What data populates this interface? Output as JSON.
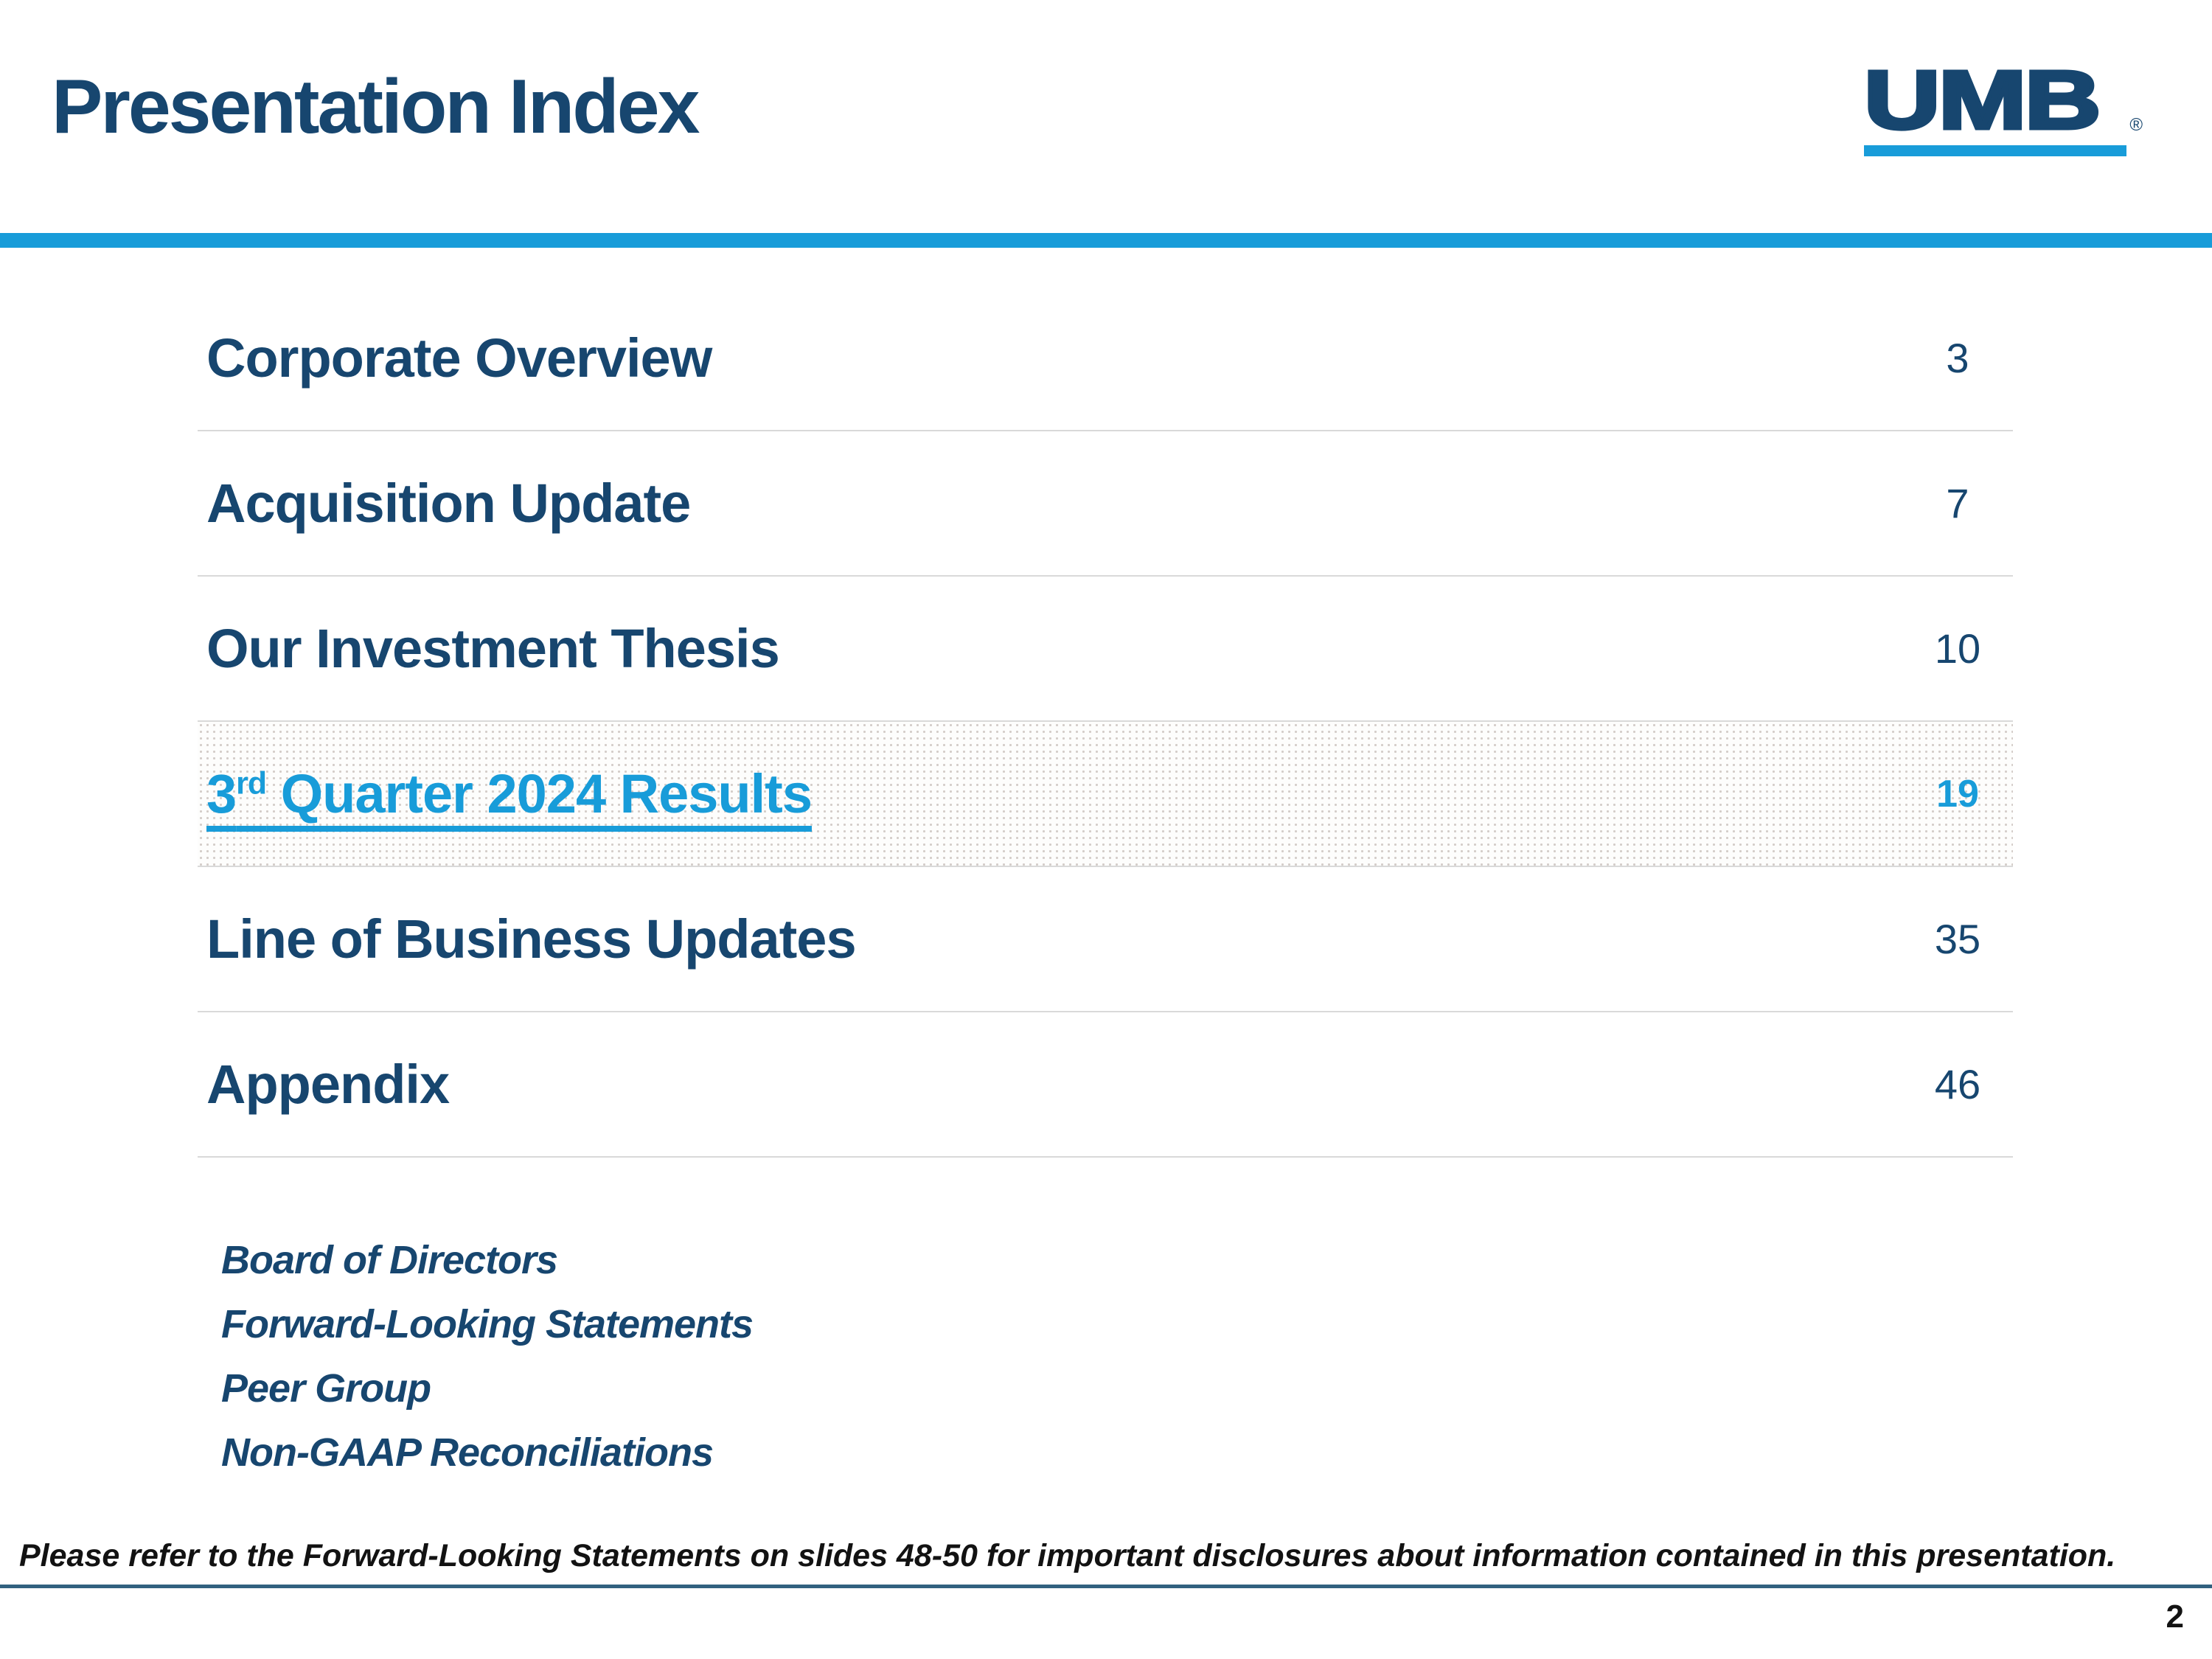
{
  "slide": {
    "title": "Presentation Index",
    "page_number": "2",
    "footer_note": "Please refer to the Forward-Looking Statements on slides 48-50 for important disclosures about information contained in this presentation."
  },
  "logo": {
    "text": "UMB",
    "registered_mark": "®"
  },
  "toc": {
    "items": [
      {
        "label": "Corporate Overview",
        "page": "3",
        "highlighted": false
      },
      {
        "label": "Acquisition Update",
        "page": "7",
        "highlighted": false
      },
      {
        "label": "Our Investment Thesis",
        "page": "10",
        "highlighted": false
      },
      {
        "label": "3rd Quarter 2024 Results",
        "page": "19",
        "highlighted": true,
        "label_parts": [
          {
            "t": "3"
          },
          {
            "t": "rd",
            "sup": true
          },
          {
            "t": " Quarter 2024 Results"
          }
        ]
      },
      {
        "label": "Line of Business Updates",
        "page": "35",
        "highlighted": false
      },
      {
        "label": "Appendix",
        "page": "46",
        "highlighted": false
      }
    ],
    "appendix_subitems": [
      "Board of Directors",
      "Forward-Looking Statements",
      "Peer Group",
      "Non-GAAP Reconciliations"
    ]
  },
  "colors": {
    "navy": "#17466F",
    "accent_blue": "#189CD9",
    "divider_gray": "#D9D9D9",
    "footer_rule_blue": "#31617F",
    "text_black": "#121212"
  }
}
